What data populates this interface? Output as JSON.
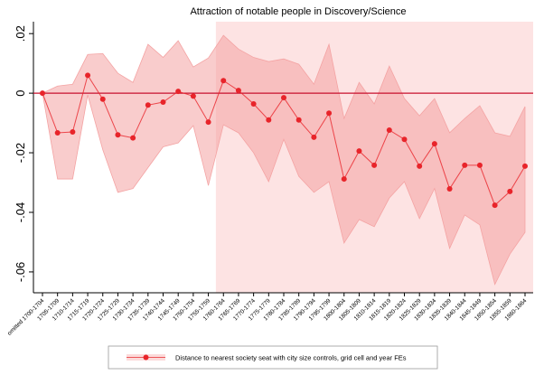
{
  "chart_data": {
    "type": "line",
    "title": "Attraction of notable people in Discovery/Science",
    "categories": [
      "omitted 1700-1704",
      "1705-1709",
      "1710-1714",
      "1715-1719",
      "1720-1724",
      "1725-1729",
      "1730-1734",
      "1735-1739",
      "1740-1744",
      "1745-1749",
      "1750-1754",
      "1755-1759",
      "1760-1764",
      "1765-1769",
      "1770-1774",
      "1775-1779",
      "1780-1784",
      "1785-1789",
      "1790-1794",
      "1795-1799",
      "1800-1804",
      "1805-1809",
      "1810-1814",
      "1815-1819",
      "1820-1824",
      "1825-1829",
      "1830-1834",
      "1835-1839",
      "1840-1844",
      "1845-1849",
      "1850-1854",
      "1855-1859",
      "1860-1864"
    ],
    "series": [
      {
        "name": "Distance to nearest society seat with city size controls, grid cell and year FEs",
        "color": "#e8242a",
        "values": [
          0,
          -0.0133,
          -0.013,
          0.006,
          -0.002,
          -0.014,
          -0.015,
          -0.004,
          -0.003,
          0.0006,
          -0.001,
          -0.0097,
          0.0042,
          0.0009,
          -0.0036,
          -0.009,
          -0.0015,
          -0.009,
          -0.0148,
          -0.0067,
          -0.0288,
          -0.0194,
          -0.0242,
          -0.0124,
          -0.0155,
          -0.0245,
          -0.017,
          -0.0321,
          -0.0242,
          -0.0242,
          -0.0376,
          -0.033,
          -0.0245
        ],
        "ci_upper": [
          0,
          0.0024,
          0.003,
          0.013,
          0.0133,
          0.0067,
          0.0036,
          0.0164,
          0.012,
          0.0176,
          0.0088,
          0.0118,
          0.0194,
          0.0148,
          0.012,
          0.0106,
          0.0115,
          0.0097,
          0.003,
          0.0164,
          -0.0085,
          0.0036,
          -0.0036,
          0.0091,
          -0.0018,
          -0.0076,
          -0.0018,
          -0.0133,
          -0.0085,
          -0.0042,
          -0.0133,
          -0.0145,
          -0.0045
        ],
        "ci_lower": [
          0,
          -0.0288,
          -0.0288,
          -0.0006,
          -0.019,
          -0.0333,
          -0.032,
          -0.025,
          -0.018,
          -0.0167,
          -0.0109,
          -0.031,
          -0.0106,
          -0.0133,
          -0.02,
          -0.0297,
          -0.0155,
          -0.0279,
          -0.0333,
          -0.0297,
          -0.0503,
          -0.0424,
          -0.0448,
          -0.0352,
          -0.0297,
          -0.0421,
          -0.032,
          -0.0521,
          -0.0409,
          -0.0442,
          -0.0642,
          -0.054,
          -0.0467
        ],
        "ci_color": "#f4a3a3"
      }
    ],
    "ylim": [
      -0.067,
      0.024
    ],
    "yticks": [
      {
        "value": 0.02,
        "label": ".02"
      },
      0,
      {
        "value": -0.02,
        "label": "-.02"
      },
      {
        "value": -0.04,
        "label": "-.04"
      },
      {
        "value": -0.06,
        "label": "-.06"
      }
    ],
    "reference_line": 0,
    "reference_color": "#c8102e",
    "highlight_from": "1760-1764",
    "highlight_color": "#fde3e3",
    "legend": "bottom"
  }
}
